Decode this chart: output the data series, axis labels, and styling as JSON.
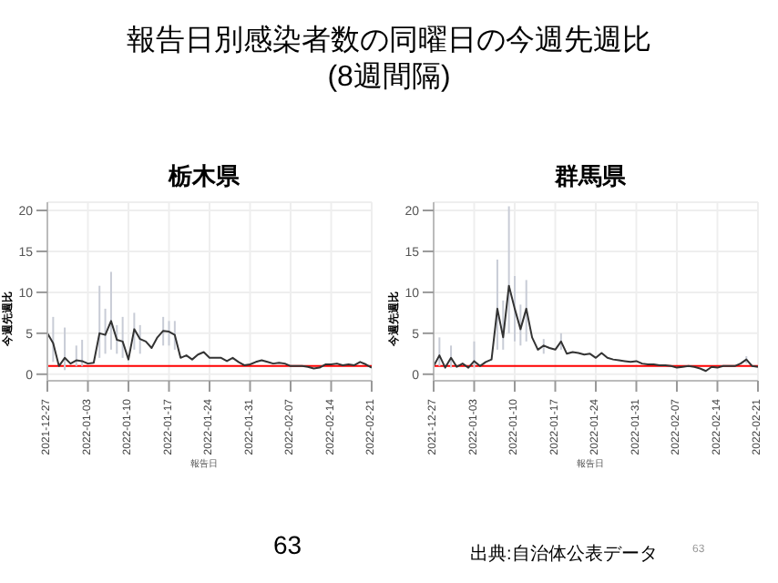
{
  "chart_data": [
    {
      "type": "other",
      "title": "報告日別感染者数の同曜日の今週先週比",
      "subtitle": "(8週間隔)",
      "annotations": [
        "63",
        "出典:自治体公表データ",
        "63"
      ]
    },
    {
      "type": "line",
      "title": "栃木県",
      "xlabel": "報告日",
      "ylabel": "今週先週比",
      "x": [
        "2021-12-27",
        "2021-12-28",
        "2021-12-29",
        "2021-12-30",
        "2021-12-31",
        "2022-01-01",
        "2022-01-02",
        "2022-01-03",
        "2022-01-04",
        "2022-01-05",
        "2022-01-06",
        "2022-01-07",
        "2022-01-08",
        "2022-01-09",
        "2022-01-10",
        "2022-01-11",
        "2022-01-12",
        "2022-01-13",
        "2022-01-14",
        "2022-01-15",
        "2022-01-16",
        "2022-01-17",
        "2022-01-18",
        "2022-01-19",
        "2022-01-20",
        "2022-01-21",
        "2022-01-22",
        "2022-01-23",
        "2022-01-24",
        "2022-01-25",
        "2022-01-26",
        "2022-01-27",
        "2022-01-28",
        "2022-01-29",
        "2022-01-30",
        "2022-01-31",
        "2022-02-01",
        "2022-02-02",
        "2022-02-03",
        "2022-02-04",
        "2022-02-05",
        "2022-02-06",
        "2022-02-07",
        "2022-02-08",
        "2022-02-09",
        "2022-02-10",
        "2022-02-11",
        "2022-02-12",
        "2022-02-13",
        "2022-02-14",
        "2022-02-15",
        "2022-02-16",
        "2022-02-17",
        "2022-02-18",
        "2022-02-19",
        "2022-02-20",
        "2022-02-21"
      ],
      "series": [
        {
          "color": "#333333",
          "values": [
            5.0,
            3.8,
            1.0,
            2.0,
            1.3,
            1.7,
            1.6,
            1.3,
            1.4,
            5.0,
            4.8,
            6.5,
            4.2,
            4.0,
            1.8,
            5.5,
            4.3,
            4.0,
            3.2,
            4.5,
            5.3,
            5.2,
            4.8,
            2.0,
            2.3,
            1.8,
            2.4,
            2.7,
            2.0,
            2.0,
            2.0,
            1.6,
            2.0,
            1.5,
            1.1,
            1.2,
            1.5,
            1.7,
            1.5,
            1.3,
            1.4,
            1.3,
            1.0,
            1.0,
            1.0,
            0.9,
            0.7,
            0.8,
            1.2,
            1.2,
            1.3,
            1.1,
            1.2,
            1.1,
            1.5,
            1.2,
            0.8
          ],
          "errors": [
            null,
            [
              1.5,
              7
            ],
            null,
            [
              0.5,
              5.7
            ],
            null,
            [
              1,
              3.5
            ],
            [
              1,
              4.2
            ],
            null,
            null,
            [
              2,
              10.8
            ],
            [
              2.5,
              8
            ],
            [
              3,
              12.5
            ],
            [
              2.5,
              6
            ],
            [
              2,
              7
            ],
            null,
            [
              3,
              7.5
            ],
            [
              2.5,
              6
            ],
            null,
            null,
            null,
            [
              3.5,
              7
            ],
            [
              3.5,
              6.5
            ],
            [
              3,
              6.5
            ],
            null,
            null,
            null,
            null,
            null,
            null,
            null,
            null,
            null,
            null,
            null,
            null,
            null,
            null,
            null,
            null,
            null,
            null,
            null,
            null,
            null,
            null,
            null,
            null,
            null,
            null,
            null,
            null,
            null,
            null,
            null,
            null,
            null,
            null
          ]
        }
      ],
      "xlim": [
        "2021-12-27",
        "2022-02-21"
      ],
      "xticks": [
        "2021-12-27",
        "2022-01-03",
        "2022-01-10",
        "2022-01-17",
        "2022-01-24",
        "2022-01-31",
        "2022-02-07",
        "2022-02-14",
        "2022-02-21"
      ],
      "ylim": [
        -0.8,
        21
      ],
      "yticks": [
        0,
        5,
        10,
        15,
        20
      ],
      "grid": true,
      "marker": "none",
      "line_style": "solid",
      "ref_lines": [
        {
          "axis": "y",
          "value": 1,
          "color": "#ff0000"
        }
      ]
    },
    {
      "type": "line",
      "title": "群馬県",
      "xlabel": "報告日",
      "ylabel": "今週先週比",
      "x": [
        "2021-12-27",
        "2021-12-28",
        "2021-12-29",
        "2021-12-30",
        "2021-12-31",
        "2022-01-01",
        "2022-01-02",
        "2022-01-03",
        "2022-01-04",
        "2022-01-05",
        "2022-01-06",
        "2022-01-07",
        "2022-01-08",
        "2022-01-09",
        "2022-01-10",
        "2022-01-11",
        "2022-01-12",
        "2022-01-13",
        "2022-01-14",
        "2022-01-15",
        "2022-01-16",
        "2022-01-17",
        "2022-01-18",
        "2022-01-19",
        "2022-01-20",
        "2022-01-21",
        "2022-01-22",
        "2022-01-23",
        "2022-01-24",
        "2022-01-25",
        "2022-01-26",
        "2022-01-27",
        "2022-01-28",
        "2022-01-29",
        "2022-01-30",
        "2022-01-31",
        "2022-02-01",
        "2022-02-02",
        "2022-02-03",
        "2022-02-04",
        "2022-02-05",
        "2022-02-06",
        "2022-02-07",
        "2022-02-08",
        "2022-02-09",
        "2022-02-10",
        "2022-02-11",
        "2022-02-12",
        "2022-02-13",
        "2022-02-14",
        "2022-02-15",
        "2022-02-16",
        "2022-02-17",
        "2022-02-18",
        "2022-02-19",
        "2022-02-20",
        "2022-02-21"
      ],
      "series": [
        {
          "color": "#333333",
          "values": [
            1.0,
            2.3,
            0.8,
            2.0,
            0.9,
            1.3,
            0.8,
            1.6,
            1.0,
            1.5,
            1.8,
            8.0,
            4.5,
            10.8,
            8.0,
            5.5,
            8.0,
            4.5,
            3.0,
            3.5,
            3.2,
            3.0,
            4.0,
            2.5,
            2.7,
            2.6,
            2.4,
            2.5,
            2.0,
            2.6,
            2.0,
            1.8,
            1.7,
            1.6,
            1.5,
            1.6,
            1.3,
            1.2,
            1.2,
            1.1,
            1.1,
            1.0,
            0.8,
            0.9,
            1.0,
            0.9,
            0.7,
            0.4,
            0.9,
            0.8,
            1.0,
            1.0,
            1.0,
            1.3,
            1.8,
            1.0,
            0.9
          ],
          "errors": [
            null,
            [
              1,
              4.5
            ],
            null,
            [
              0.8,
              3.5
            ],
            null,
            null,
            null,
            [
              0.8,
              4
            ],
            null,
            null,
            null,
            [
              3,
              14
            ],
            [
              3,
              9
            ],
            [
              5,
              20.5
            ],
            [
              4,
              12
            ],
            [
              3.5,
              8.5
            ],
            [
              4,
              11.5
            ],
            null,
            null,
            [
              2.5,
              4.3
            ],
            null,
            null,
            [
              3,
              5
            ],
            null,
            null,
            null,
            null,
            null,
            null,
            null,
            null,
            null,
            null,
            null,
            null,
            null,
            null,
            null,
            null,
            null,
            null,
            null,
            null,
            null,
            null,
            null,
            null,
            null,
            null,
            null,
            null,
            null,
            null,
            null,
            [
              1.3,
              2.2
            ],
            null,
            null
          ]
        }
      ],
      "xlim": [
        "2021-12-27",
        "2022-02-21"
      ],
      "xticks": [
        "2021-12-27",
        "2022-01-03",
        "2022-01-10",
        "2022-01-17",
        "2022-01-24",
        "2022-01-31",
        "2022-02-07",
        "2022-02-14",
        "2022-02-21"
      ],
      "ylim": [
        -0.8,
        21
      ],
      "yticks": [
        0,
        5,
        10,
        15,
        20
      ],
      "grid": true,
      "marker": "none",
      "line_style": "solid",
      "ref_lines": [
        {
          "axis": "y",
          "value": 1,
          "color": "#ff0000"
        }
      ]
    }
  ]
}
